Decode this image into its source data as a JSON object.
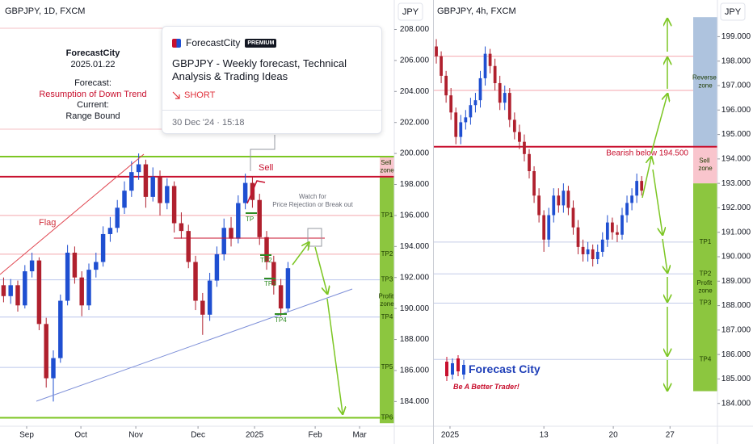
{
  "chart_data": [
    {
      "type": "candlestick",
      "title": "GBPJPY, 1D, FXCM",
      "y_axis_label": "JPY",
      "up_color": "#1f4fd1",
      "down_color": "#b0202e",
      "grid": false,
      "x": [
        2,
        6,
        10,
        14,
        18,
        22,
        26,
        30,
        34,
        38,
        42,
        46,
        50,
        54,
        58,
        62,
        66,
        70,
        74,
        78,
        82,
        86,
        90,
        94,
        98,
        102,
        106,
        110,
        114,
        118,
        122,
        126,
        130,
        134,
        138,
        142,
        146,
        150,
        154,
        158,
        162
      ],
      "open": [
        191.5,
        190.8,
        191.5,
        190.2,
        192.4,
        193.1,
        189.0,
        185.5,
        186.8,
        190.5,
        193.6,
        192.0,
        190.2,
        192.5,
        193.0,
        194.8,
        195.2,
        196.5,
        197.6,
        198.8,
        199.3,
        197.2,
        198.5,
        196.8,
        197.9,
        195.5,
        195.0,
        193.0,
        190.5,
        189.6,
        191.8,
        193.5,
        195.2,
        194.5,
        196.8,
        198.1,
        197.0,
        194.6,
        193.0,
        191.5,
        190.0
      ],
      "high": [
        192.0,
        191.9,
        191.8,
        192.8,
        193.6,
        193.3,
        189.4,
        187.3,
        190.9,
        194.1,
        194.0,
        192.4,
        192.9,
        193.6,
        195.3,
        195.9,
        197.0,
        198.2,
        199.5,
        200.0,
        199.6,
        199.1,
        198.9,
        198.4,
        198.2,
        196.2,
        195.4,
        193.4,
        191.0,
        192.3,
        194.0,
        195.8,
        195.9,
        197.3,
        198.7,
        198.5,
        197.4,
        195.0,
        193.4,
        191.9,
        193.0
      ],
      "low": [
        190.4,
        190.3,
        189.8,
        190.0,
        192.0,
        188.6,
        184.9,
        184.0,
        186.5,
        190.2,
        191.6,
        189.5,
        189.9,
        192.0,
        192.7,
        194.3,
        194.9,
        196.1,
        197.2,
        198.3,
        196.5,
        196.9,
        196.0,
        196.4,
        194.9,
        194.5,
        192.6,
        189.9,
        188.3,
        189.2,
        191.4,
        193.1,
        194.0,
        194.2,
        196.4,
        196.5,
        194.1,
        192.5,
        190.9,
        189.5,
        189.8
      ],
      "close": [
        190.8,
        191.5,
        190.2,
        192.4,
        193.1,
        189.0,
        185.5,
        186.8,
        190.5,
        193.6,
        192.0,
        190.2,
        192.5,
        193.0,
        194.8,
        195.2,
        196.5,
        197.6,
        198.8,
        199.3,
        197.2,
        198.5,
        196.8,
        197.9,
        195.5,
        195.0,
        193.0,
        190.5,
        189.6,
        191.8,
        193.5,
        195.2,
        194.5,
        196.8,
        198.1,
        197.0,
        194.6,
        193.0,
        191.5,
        190.0,
        192.6
      ],
      "xlim": [
        0,
        221.8
      ],
      "xticks": [
        {
          "value": 15,
          "label": "Sep"
        },
        {
          "value": 45.5,
          "label": "Oct"
        },
        {
          "value": 76.4,
          "label": "Nov"
        },
        {
          "value": 111.4,
          "label": "Dec"
        },
        {
          "value": 143.2,
          "label": "2025"
        },
        {
          "value": 177.3,
          "label": "Feb"
        },
        {
          "value": 202.3,
          "label": "Mar"
        }
      ],
      "ylim": [
        182.3,
        209.9
      ],
      "yticks": [
        {
          "value": 184,
          "label": "184.000"
        },
        {
          "value": 186,
          "label": "186.000"
        },
        {
          "value": 188,
          "label": "188.000"
        },
        {
          "value": 190,
          "label": "190.000"
        },
        {
          "value": 192,
          "label": "192.000"
        },
        {
          "value": 194,
          "label": "194.000"
        },
        {
          "value": 196,
          "label": "196.000"
        },
        {
          "value": 198,
          "label": "198.000"
        },
        {
          "value": 200,
          "label": "200.000"
        },
        {
          "value": 202,
          "label": "202.000"
        },
        {
          "value": 204,
          "label": "204.000"
        },
        {
          "value": 206,
          "label": "206.000"
        },
        {
          "value": 208,
          "label": "208.000"
        }
      ],
      "zones": [
        {
          "label": "Sell zone",
          "range": [
            198.45,
            199.8
          ],
          "color": "#f9c5cd"
        },
        {
          "label": "Profit zone",
          "range": [
            182.6,
            198.45
          ],
          "color": "#8cc63f"
        }
      ],
      "levels": [
        {
          "value": 199.8,
          "color": "#7cc623",
          "bold": true
        },
        {
          "value": 198.5,
          "color": "#c8102e",
          "bold": true
        },
        {
          "label": "TP1",
          "value": 196.0,
          "color": "#f4a6ae",
          "label_at": "strip"
        },
        {
          "label": "TP2",
          "value": 193.5,
          "color": "#f4a6ae",
          "label_at": "strip"
        },
        {
          "label": "TP3",
          "value": 191.85,
          "color": "#bcc6ec",
          "label_at": "strip"
        },
        {
          "label": "TP4",
          "value": 189.45,
          "color": "#bcc6ec",
          "label_at": "strip"
        },
        {
          "label": "TP5",
          "value": 186.2,
          "color": "#bcc6ec",
          "label_at": "strip"
        },
        {
          "label": "TP6",
          "value": 182.95,
          "color": "#7cc623",
          "bold": true,
          "label_at": "strip"
        }
      ],
      "annotations": [
        "Flag",
        "Sell",
        "TP",
        "TP2",
        "TP3",
        "TP4",
        "Watch for",
        "Price Rejection or Break out"
      ]
    },
    {
      "type": "candlestick",
      "title": "GBPJPY, 4h, FXCM",
      "y_axis_label": "JPY",
      "up_color": "#1f4fd1",
      "down_color": "#b0202e",
      "grid": false,
      "x": [
        0,
        1,
        2,
        3,
        4,
        5,
        6,
        7,
        8,
        9,
        10,
        11,
        12,
        13,
        14,
        15,
        16,
        17,
        18,
        19,
        20,
        21,
        22,
        23,
        24,
        25,
        26,
        27,
        28,
        29,
        30,
        31,
        32,
        33,
        34,
        35,
        36,
        37,
        38,
        39,
        40,
        41,
        42
      ],
      "open": [
        198.6,
        198.2,
        197.4,
        196.6,
        195.9,
        194.9,
        195.5,
        195.7,
        196.2,
        196.4,
        197.3,
        198.3,
        197.8,
        197.1,
        196.3,
        196.7,
        195.6,
        195.1,
        194.7,
        194.2,
        193.5,
        192.5,
        191.7,
        190.7,
        191.7,
        192.5,
        192.1,
        192.7,
        192.0,
        191.2,
        190.4,
        190.1,
        190.3,
        189.9,
        190.2,
        190.7,
        191.4,
        191.0,
        190.9,
        191.7,
        192.2,
        192.5,
        193.1
      ],
      "high": [
        198.9,
        198.4,
        197.6,
        196.9,
        196.1,
        195.8,
        196.0,
        196.5,
        196.7,
        197.6,
        198.6,
        198.5,
        198.1,
        197.4,
        197.0,
        196.9,
        195.9,
        195.4,
        195.0,
        194.4,
        193.7,
        192.8,
        191.9,
        192.0,
        192.8,
        192.8,
        193.0,
        192.9,
        192.3,
        191.5,
        190.7,
        190.6,
        190.5,
        190.5,
        191.0,
        191.7,
        191.6,
        191.3,
        192.0,
        192.5,
        192.8,
        193.4,
        193.3
      ],
      "low": [
        197.9,
        197.1,
        196.3,
        195.6,
        194.6,
        194.6,
        195.2,
        195.4,
        195.9,
        196.1,
        197.0,
        197.5,
        196.8,
        196.0,
        196.0,
        195.3,
        194.8,
        194.4,
        193.9,
        193.2,
        192.2,
        191.4,
        190.2,
        190.4,
        191.4,
        191.8,
        191.8,
        191.7,
        190.9,
        190.1,
        189.8,
        189.8,
        189.6,
        189.7,
        190.0,
        190.4,
        190.7,
        190.6,
        190.7,
        191.4,
        191.9,
        192.2,
        192.5
      ],
      "close": [
        198.2,
        197.4,
        196.6,
        195.9,
        194.9,
        195.5,
        195.7,
        196.2,
        196.4,
        197.3,
        198.3,
        197.8,
        197.1,
        196.3,
        196.7,
        195.6,
        195.1,
        194.7,
        194.2,
        193.5,
        192.5,
        191.7,
        190.7,
        191.7,
        192.5,
        192.1,
        192.7,
        192.0,
        191.2,
        190.4,
        190.1,
        190.3,
        189.9,
        190.2,
        190.7,
        191.4,
        191.0,
        190.9,
        191.7,
        192.2,
        192.5,
        193.1,
        192.7
      ],
      "xlim": [
        -0.5,
        57.5
      ],
      "xticks": [
        {
          "value": 2.8,
          "label": "2025"
        },
        {
          "value": 22,
          "label": "13"
        },
        {
          "value": 36.2,
          "label": "20"
        },
        {
          "value": 47.8,
          "label": "27"
        }
      ],
      "ylim": [
        183.0,
        200.5
      ],
      "yticks": [
        {
          "value": 184,
          "label": "184.000"
        },
        {
          "value": 185,
          "label": "185.000"
        },
        {
          "value": 186,
          "label": "186.000"
        },
        {
          "value": 187,
          "label": "187.000"
        },
        {
          "value": 188,
          "label": "188.000"
        },
        {
          "value": 189,
          "label": "189.000"
        },
        {
          "value": 190,
          "label": "190.000"
        },
        {
          "value": 191,
          "label": "191.000"
        },
        {
          "value": 192,
          "label": "192.000"
        },
        {
          "value": 193,
          "label": "193.000"
        },
        {
          "value": 194,
          "label": "194.000"
        },
        {
          "value": 195,
          "label": "195.000"
        },
        {
          "value": 196,
          "label": "196.000"
        },
        {
          "value": 197,
          "label": "197.000"
        },
        {
          "value": 198,
          "label": "198.000"
        },
        {
          "value": 199,
          "label": "199.000"
        }
      ],
      "zones": [
        {
          "label": "Reverse zone",
          "range": [
            194.5,
            199.8
          ],
          "color": "#aec3de"
        },
        {
          "label": "Sell zone",
          "range": [
            193.0,
            194.5
          ],
          "color": "#f9c5cd"
        },
        {
          "label": "Profit zone",
          "range": [
            184.5,
            193.0
          ],
          "color": "#8cc63f"
        }
      ],
      "levels": [
        {
          "value": 198.2,
          "color": "#f4a6ae"
        },
        {
          "value": 196.8,
          "color": "#f4a6ae"
        },
        {
          "label": "Bearish below 194.500",
          "value": 194.5,
          "color": "#c8102e",
          "bold": true,
          "label_at": "line"
        },
        {
          "label": "TP1",
          "value": 190.6,
          "color": "#c3cbe8",
          "label_at": "strip"
        },
        {
          "label": "TP2",
          "value": 189.3,
          "color": "#c3cbe8",
          "label_at": "strip"
        },
        {
          "label": "TP3",
          "value": 188.1,
          "color": "#c3cbe8",
          "label_at": "strip"
        },
        {
          "label": "TP4",
          "value": 185.8,
          "color": "#c3cbe8",
          "label_at": "strip"
        }
      ]
    }
  ],
  "forecast_note": {
    "brand": "ForecastCity",
    "date": "2025.01.22",
    "forecast_label": "Forecast:",
    "forecast": "Resumption of Down Trend",
    "current_label": "Current:",
    "current": "Range Bound"
  },
  "idea_card": {
    "author": "ForecastCity",
    "badge": "PREMIUM",
    "title": "GBPJPY - Weekly forecast, Technical Analysis & Trading Ideas",
    "direction": "SHORT",
    "published": "30 Dec '24 · 15:18"
  },
  "logo": {
    "name": "Forecast City",
    "slogan": "Be A Better Trader!"
  }
}
